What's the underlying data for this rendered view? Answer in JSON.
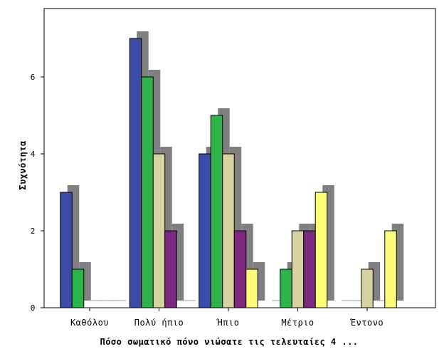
{
  "chart_data": {
    "type": "bar",
    "style": "3d-shadow-clustered",
    "categories": [
      "Καθόλου",
      "Πολύ ήπιο",
      "Ήπιο",
      "Μέτριο",
      "Έντονο"
    ],
    "series": [
      {
        "color": "#3b4ba8",
        "values": [
          3,
          7,
          4,
          0,
          0
        ]
      },
      {
        "color": "#2eb24a",
        "values": [
          1,
          6,
          5,
          1,
          0
        ]
      },
      {
        "color": "#d6d3a0",
        "values": [
          0,
          4,
          4,
          2,
          1
        ]
      },
      {
        "color": "#7b2a7f",
        "values": [
          0,
          2,
          2,
          2,
          0
        ]
      },
      {
        "color": "#fdfb7a",
        "values": [
          0,
          0,
          1,
          3,
          2
        ]
      }
    ],
    "shadow_color": "#808080",
    "xlabel": "Πόσο σωματικό πόνο νιώσατε τις τελευταίες 4 ...",
    "ylabel": "Συχνότητα",
    "ylim": [
      0,
      7.7
    ],
    "yticks": [
      0,
      2,
      4,
      6
    ],
    "grid": false,
    "legend": "none"
  }
}
